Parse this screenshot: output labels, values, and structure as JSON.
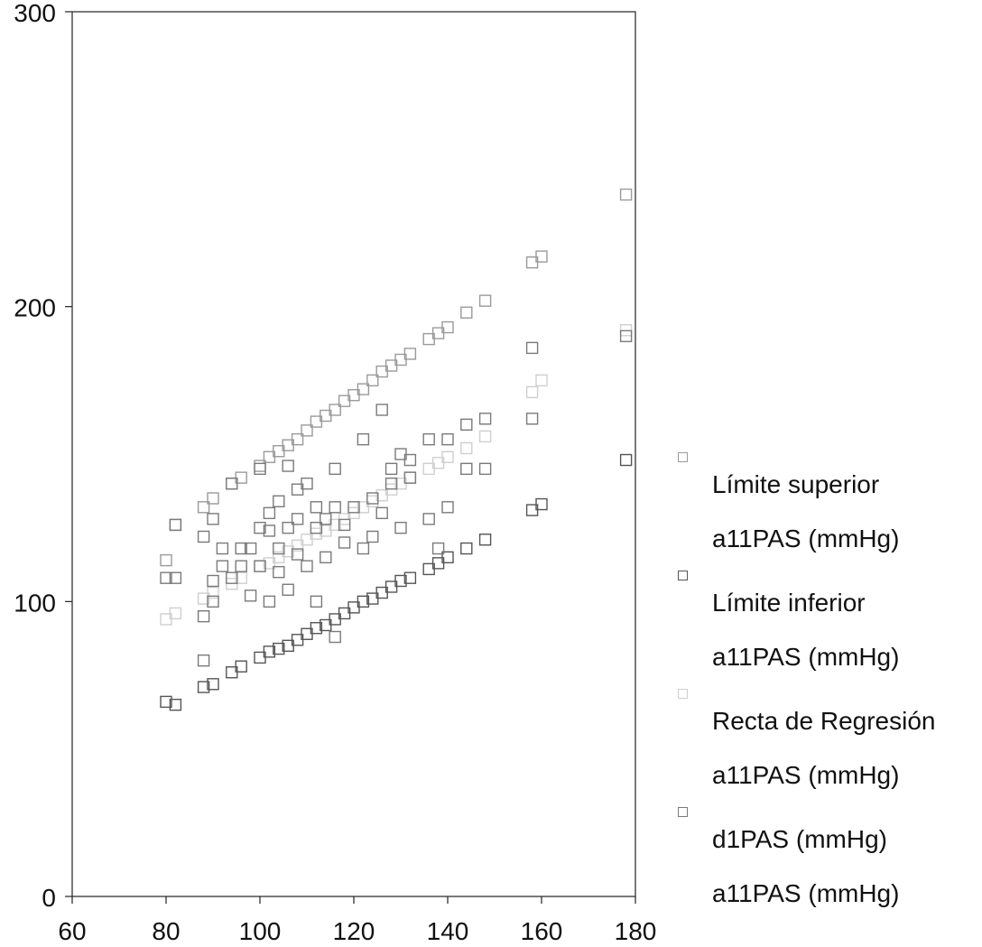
{
  "chart_data": {
    "type": "scatter",
    "title": "",
    "xlabel": "",
    "ylabel": "",
    "xlim": [
      60,
      180
    ],
    "ylim": [
      0,
      300
    ],
    "x_ticks": [
      "60",
      "80",
      "100",
      "120",
      "140",
      "160",
      "180"
    ],
    "y_ticks": [
      "0",
      "100",
      "200",
      "300"
    ],
    "grid": false,
    "legend_placement": "right",
    "series": [
      {
        "name": "Límite superior a11PAS (mmHg)",
        "label_lines": [
          "Límite superior",
          "a11PAS (mmHg)"
        ],
        "color": "#9a9a9a",
        "x": [
          80,
          82,
          88,
          90,
          94,
          96,
          100,
          102,
          104,
          106,
          108,
          110,
          112,
          114,
          116,
          118,
          120,
          122,
          124,
          126,
          128,
          130,
          132,
          136,
          138,
          140,
          144,
          148,
          158,
          160,
          178
        ],
        "y": [
          114,
          126,
          132,
          135,
          140,
          142,
          146,
          149,
          151,
          153,
          155,
          158,
          161,
          163,
          165,
          168,
          170,
          172,
          175,
          178,
          180,
          182,
          184,
          189,
          191,
          193,
          198,
          202,
          215,
          217,
          238
        ]
      },
      {
        "name": "Límite inferior a11PAS (mmHg)",
        "label_lines": [
          "Límite inferior",
          "a11PAS (mmHg)"
        ],
        "color": "#555555",
        "x": [
          80,
          82,
          88,
          90,
          94,
          96,
          100,
          102,
          104,
          106,
          108,
          110,
          112,
          114,
          116,
          118,
          120,
          122,
          124,
          126,
          128,
          130,
          132,
          136,
          138,
          140,
          144,
          148,
          158,
          160,
          178
        ],
        "y": [
          66,
          65,
          71,
          72,
          76,
          78,
          81,
          83,
          84,
          85,
          87,
          89,
          91,
          92,
          94,
          96,
          98,
          100,
          101,
          103,
          105,
          107,
          108,
          111,
          113,
          115,
          118,
          121,
          131,
          133,
          148
        ]
      },
      {
        "name": "Recta de Regresión a11PAS (mmHg)",
        "label_lines": [
          "Recta de Regresión",
          "a11PAS (mmHg)"
        ],
        "color": "#cfcfcf",
        "x": [
          80,
          82,
          88,
          90,
          94,
          96,
          100,
          102,
          104,
          106,
          108,
          110,
          112,
          114,
          116,
          118,
          120,
          122,
          124,
          126,
          128,
          130,
          132,
          136,
          138,
          140,
          144,
          148,
          158,
          160,
          178
        ],
        "y": [
          94,
          96,
          101,
          103,
          106,
          108,
          112,
          113,
          115,
          117,
          119,
          121,
          123,
          124,
          126,
          128,
          130,
          132,
          134,
          136,
          138,
          140,
          142,
          145,
          147,
          149,
          152,
          156,
          171,
          175,
          192
        ]
      },
      {
        "name": "d1PAS (mmHg) a11PAS (mmHg)",
        "label_lines": [
          "d1PAS (mmHg)",
          "a11PAS (mmHg)"
        ],
        "color": "#7a7a7a",
        "x": [
          80,
          82,
          82,
          88,
          88,
          88,
          90,
          90,
          90,
          92,
          92,
          94,
          94,
          96,
          96,
          98,
          98,
          100,
          100,
          100,
          102,
          102,
          102,
          104,
          104,
          104,
          106,
          106,
          106,
          108,
          108,
          108,
          110,
          110,
          112,
          112,
          112,
          114,
          114,
          116,
          116,
          116,
          118,
          118,
          120,
          122,
          122,
          124,
          124,
          126,
          126,
          128,
          128,
          130,
          130,
          132,
          132,
          136,
          136,
          138,
          140,
          140,
          144,
          144,
          148,
          148,
          158,
          158,
          178
        ],
        "y": [
          108,
          108,
          126,
          80,
          95,
          122,
          100,
          107,
          128,
          112,
          118,
          108,
          140,
          112,
          118,
          118,
          102,
          112,
          125,
          145,
          124,
          130,
          100,
          134,
          118,
          110,
          146,
          125,
          104,
          128,
          138,
          116,
          140,
          112,
          132,
          125,
          100,
          128,
          115,
          145,
          132,
          88,
          126,
          120,
          132,
          118,
          155,
          135,
          122,
          165,
          130,
          140,
          145,
          150,
          125,
          142,
          148,
          155,
          128,
          118,
          132,
          155,
          145,
          160,
          145,
          162,
          162,
          186,
          190
        ]
      }
    ]
  }
}
